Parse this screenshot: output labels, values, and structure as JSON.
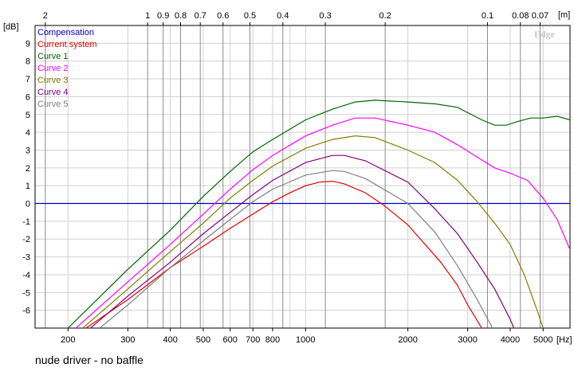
{
  "chart_data": {
    "type": "line",
    "xscale": "log",
    "xlim": [
      160,
      6000
    ],
    "ylim": [
      -7,
      10
    ],
    "grid": true,
    "legend_position": "top-left",
    "yunit": "[dB]",
    "xunit": "[Hz]",
    "top_axis_unit": "[m]",
    "watermark": "Edge",
    "x_ticks": [
      "200",
      "300",
      "400",
      "500",
      "600",
      "700",
      "800",
      "1000",
      "2000",
      "3000",
      "4000",
      "5000"
    ],
    "y_ticks": [
      "9",
      "8",
      "7",
      "6",
      "5",
      "4",
      "3",
      "2",
      "1",
      "0",
      "-1",
      "-2",
      "-3",
      "-4",
      "-5",
      "-6"
    ],
    "top_ticks": [
      "2",
      "1",
      "0.9",
      "0.8",
      "0.7",
      "0.6",
      "0.5",
      "0.4",
      "0.3",
      "0.2",
      "0.1",
      "0.08",
      "0.07"
    ],
    "series": [
      {
        "name": "Compensation",
        "color": "#0000cc",
        "points": [
          [
            160,
            0
          ],
          [
            6000,
            0
          ]
        ]
      },
      {
        "name": "Current system",
        "color": "#e00000",
        "points": [
          [
            226,
            -7
          ],
          [
            300,
            -5.4
          ],
          [
            400,
            -3.6
          ],
          [
            500,
            -2.4
          ],
          [
            600,
            -1.4
          ],
          [
            700,
            -0.6
          ],
          [
            800,
            0.1
          ],
          [
            900,
            0.6
          ],
          [
            1000,
            1.0
          ],
          [
            1100,
            1.2
          ],
          [
            1200,
            1.25
          ],
          [
            1300,
            1.1
          ],
          [
            1500,
            0.6
          ],
          [
            1700,
            -0.1
          ],
          [
            2000,
            -1.2
          ],
          [
            2500,
            -3.3
          ],
          [
            2800,
            -4.6
          ],
          [
            3000,
            -5.7
          ],
          [
            3300,
            -7
          ]
        ]
      },
      {
        "name": "Curve 1",
        "color": "#006600",
        "points": [
          [
            200,
            -7
          ],
          [
            300,
            -3.7
          ],
          [
            400,
            -1.5
          ],
          [
            500,
            0.4
          ],
          [
            600,
            1.8
          ],
          [
            700,
            2.9
          ],
          [
            800,
            3.6
          ],
          [
            1000,
            4.7
          ],
          [
            1200,
            5.3
          ],
          [
            1400,
            5.7
          ],
          [
            1600,
            5.8
          ],
          [
            2000,
            5.7
          ],
          [
            2400,
            5.6
          ],
          [
            2800,
            5.4
          ],
          [
            3000,
            5.1
          ],
          [
            3300,
            4.7
          ],
          [
            3600,
            4.4
          ],
          [
            3900,
            4.4
          ],
          [
            4200,
            4.6
          ],
          [
            4600,
            4.8
          ],
          [
            5000,
            4.8
          ],
          [
            5500,
            4.9
          ],
          [
            6000,
            4.7
          ]
        ]
      },
      {
        "name": "Curve 2",
        "color": "#ff00ff",
        "points": [
          [
            211,
            -7
          ],
          [
            300,
            -4.4
          ],
          [
            400,
            -2.3
          ],
          [
            500,
            -0.6
          ],
          [
            600,
            0.8
          ],
          [
            700,
            1.9
          ],
          [
            800,
            2.7
          ],
          [
            1000,
            3.8
          ],
          [
            1200,
            4.4
          ],
          [
            1400,
            4.8
          ],
          [
            1600,
            4.8
          ],
          [
            2000,
            4.4
          ],
          [
            2400,
            4.0
          ],
          [
            2800,
            3.3
          ],
          [
            3200,
            2.6
          ],
          [
            3600,
            2.0
          ],
          [
            4000,
            1.7
          ],
          [
            4500,
            1.3
          ],
          [
            5000,
            0.3
          ],
          [
            5500,
            -0.9
          ],
          [
            6000,
            -2.6
          ]
        ]
      },
      {
        "name": "Curve 3",
        "color": "#808000",
        "points": [
          [
            221,
            -7
          ],
          [
            300,
            -4.8
          ],
          [
            400,
            -2.7
          ],
          [
            500,
            -1.1
          ],
          [
            600,
            0.3
          ],
          [
            700,
            1.3
          ],
          [
            800,
            2.1
          ],
          [
            1000,
            3.1
          ],
          [
            1200,
            3.6
          ],
          [
            1400,
            3.8
          ],
          [
            1600,
            3.7
          ],
          [
            2000,
            3.0
          ],
          [
            2400,
            2.3
          ],
          [
            2800,
            1.3
          ],
          [
            3200,
            0.1
          ],
          [
            3600,
            -1.1
          ],
          [
            4000,
            -2.3
          ],
          [
            4400,
            -4.0
          ],
          [
            4800,
            -6.0
          ],
          [
            5000,
            -7
          ]
        ]
      },
      {
        "name": "Curve 4",
        "color": "#800080",
        "points": [
          [
            233,
            -7
          ],
          [
            300,
            -5.2
          ],
          [
            400,
            -3.3
          ],
          [
            500,
            -1.7
          ],
          [
            600,
            -0.5
          ],
          [
            700,
            0.5
          ],
          [
            800,
            1.3
          ],
          [
            1000,
            2.3
          ],
          [
            1200,
            2.7
          ],
          [
            1300,
            2.7
          ],
          [
            1500,
            2.4
          ],
          [
            2000,
            1.2
          ],
          [
            2400,
            -0.3
          ],
          [
            2800,
            -1.7
          ],
          [
            3200,
            -3.3
          ],
          [
            3600,
            -4.8
          ],
          [
            4000,
            -6.5
          ],
          [
            4100,
            -7
          ]
        ]
      },
      {
        "name": "Curve 5",
        "color": "#808080",
        "points": [
          [
            248,
            -7
          ],
          [
            300,
            -5.7
          ],
          [
            400,
            -3.6
          ],
          [
            500,
            -2.1
          ],
          [
            600,
            -0.9
          ],
          [
            700,
            0.1
          ],
          [
            800,
            0.8
          ],
          [
            1000,
            1.6
          ],
          [
            1200,
            1.85
          ],
          [
            1300,
            1.8
          ],
          [
            1500,
            1.4
          ],
          [
            2000,
            0.0
          ],
          [
            2400,
            -1.6
          ],
          [
            2800,
            -3.5
          ],
          [
            3200,
            -5.4
          ],
          [
            3550,
            -7
          ]
        ]
      }
    ]
  },
  "caption": "nude driver - no baffle"
}
